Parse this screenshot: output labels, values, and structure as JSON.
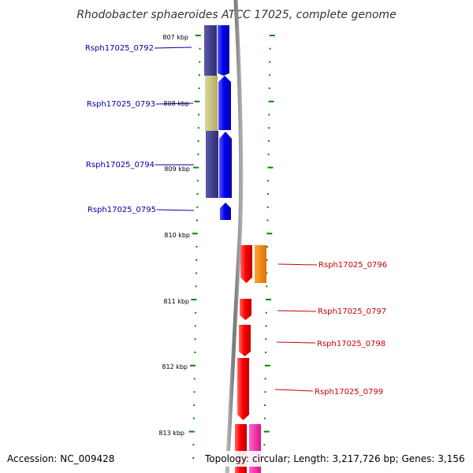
{
  "title": "Rhodobacter sphaeroides ATCC 17025, complete genome",
  "footer": {
    "accession": "Accession: NC_009428",
    "topology": "Topology: circular; Length: 3,217,726 bp; Genes: 3,156"
  },
  "scale_labels": [
    "807 kbp",
    "808 kbp",
    "809 kbp",
    "810 kbp",
    "811 kbp",
    "812 kbp",
    "813 kbp"
  ],
  "colors": {
    "forward_cds": "#0000ee",
    "reverse_cds": "#ff0000",
    "cog_navy": "#3a3a8a",
    "cog_khaki": "#c8bf78",
    "cog_orange": "#ff8c00",
    "cog_pink": "#ff33aa",
    "backbone": "#888888",
    "scale_ticks": "#008800",
    "left_labels": "#0000aa",
    "right_labels": "#cc0000"
  },
  "genes_left": [
    {
      "label": "Rsph17025_0792"
    },
    {
      "label": "Rsph17025_0793"
    },
    {
      "label": "Rsph17025_0794"
    },
    {
      "label": "Rsph17025_0795"
    }
  ],
  "genes_right": [
    {
      "label": "Rsph17025_0796"
    },
    {
      "label": "Rsph17025_0797"
    },
    {
      "label": "Rsph17025_0798"
    },
    {
      "label": "Rsph17025_0799"
    }
  ]
}
